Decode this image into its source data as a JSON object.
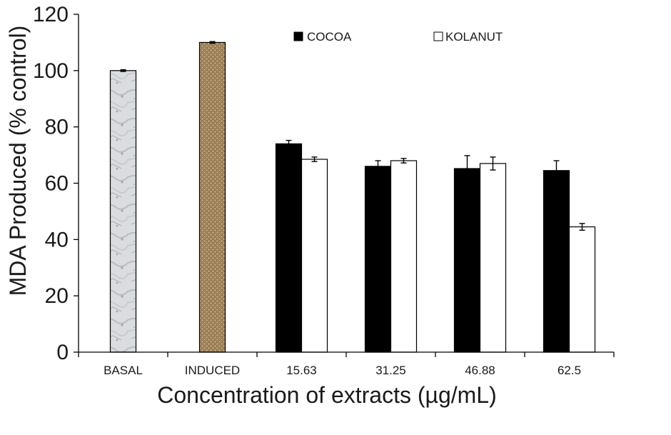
{
  "chart_data": {
    "type": "bar",
    "title": "",
    "xlabel": "Concentration of extracts (µg/mL)",
    "ylabel": "MDA Produced (% control)",
    "ylim": [
      0,
      120
    ],
    "yticks": [
      "0",
      "20",
      "40",
      "60",
      "80",
      "100",
      "120"
    ],
    "categories": [
      "BASAL",
      "INDUCED",
      "15.63",
      "31.25",
      "46.88",
      "62.5"
    ],
    "legend": {
      "placement": "top",
      "entries": [
        "COCOA",
        "KOLANUT"
      ]
    },
    "series": [
      {
        "name": "COCOA",
        "color": "#000000",
        "values": [
          null,
          null,
          74,
          66,
          65.2,
          64.5
        ],
        "errors": [
          null,
          null,
          1.2,
          2,
          4.6,
          3.5
        ]
      },
      {
        "name": "KOLANUT",
        "color": "#ffffff",
        "values": [
          null,
          null,
          68.5,
          68,
          67,
          44.5
        ],
        "errors": [
          null,
          null,
          0.8,
          0.8,
          2.3,
          1.2
        ]
      }
    ],
    "single_bars": [
      {
        "category": "BASAL",
        "value": 100,
        "error": 0.3,
        "pattern": "marble-gray"
      },
      {
        "category": "INDUCED",
        "value": 110,
        "error": 0.3,
        "pattern": "burlap-brown"
      }
    ],
    "grid": false
  }
}
